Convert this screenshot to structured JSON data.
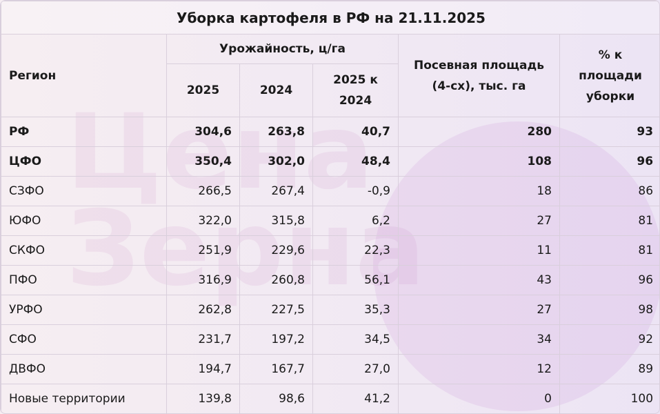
{
  "title": "Уборка картофеля в РФ на 21.11.2025",
  "watermark": [
    "Цена",
    "Зерна"
  ],
  "header": {
    "region": "Регион",
    "yield": "Урожайность, ц/га",
    "years": [
      "2025",
      "2024",
      "2025 к 2024"
    ],
    "area": "Посевная площадь (4-сх), тыс. га",
    "percent": "% к площади уборки"
  },
  "rows": [
    [
      "РФ",
      "304,6",
      "263,8",
      "40,7",
      "280",
      "93"
    ],
    [
      "ЦФО",
      "350,4",
      "302,0",
      "48,4",
      "108",
      "96"
    ],
    [
      "СЗФО",
      "266,5",
      "267,4",
      "-0,9",
      "18",
      "86"
    ],
    [
      "ЮФО",
      "322,0",
      "315,8",
      "6,2",
      "27",
      "81"
    ],
    [
      "СКФО",
      "251,9",
      "229,6",
      "22,3",
      "11",
      "81"
    ],
    [
      "ПФО",
      "316,9",
      "260,8",
      "56,1",
      "43",
      "96"
    ],
    [
      "УРФО",
      "262,8",
      "227,5",
      "35,3",
      "27",
      "98"
    ],
    [
      "СФО",
      "231,7",
      "197,2",
      "34,5",
      "34",
      "92"
    ],
    [
      "ДВФО",
      "194,7",
      "167,7",
      "27,0",
      "12",
      "89"
    ],
    [
      "Новые территории",
      "139,8",
      "98,6",
      "41,2",
      "0",
      "100"
    ]
  ]
}
